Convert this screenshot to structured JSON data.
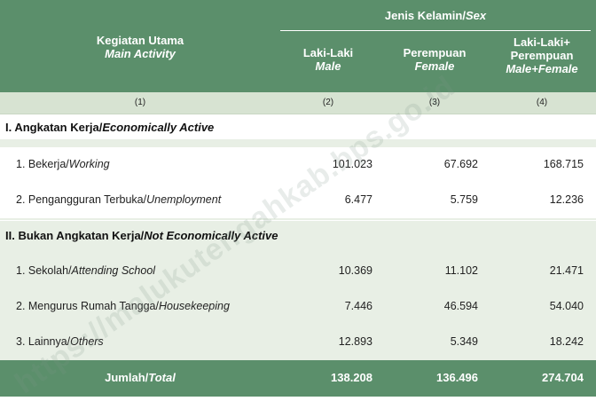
{
  "header": {
    "main_activity": "Kegiatan Utama",
    "main_activity_en": "Main Activity",
    "sex_group": "Jenis Kelamin/",
    "sex_group_en": "Sex",
    "col_male": "Laki-Laki",
    "col_male_en": "Male",
    "col_female": "Perempuan",
    "col_female_en": "Female",
    "col_both_1": "Laki-Laki+",
    "col_both_2": "Perempuan",
    "col_both_en": "Male+Female"
  },
  "col_numbers": [
    "(1)",
    "(2)",
    "(3)",
    "(4)"
  ],
  "sections": [
    {
      "label": "I. Angkatan Kerja/",
      "label_en": "Economically Active",
      "rows": [
        {
          "label": "1. Bekerja/",
          "label_en": "Working",
          "male": "101.023",
          "female": "67.692",
          "total": "168.715"
        },
        {
          "label": "2. Pengangguran Terbuka/",
          "label_en": "Unemployment",
          "male": "6.477",
          "female": "5.759",
          "total": "12.236"
        }
      ]
    },
    {
      "label": "II. Bukan Angkatan Kerja/",
      "label_en": "Not Economically Active",
      "rows": [
        {
          "label": "1. Sekolah/",
          "label_en": "Attending School",
          "male": "10.369",
          "female": "11.102",
          "total": "21.471"
        },
        {
          "label": "2. Mengurus Rumah Tangga/",
          "label_en": "Housekeeping",
          "male": "7.446",
          "female": "46.594",
          "total": "54.040"
        },
        {
          "label": "3. Lainnya/",
          "label_en": "Others",
          "male": "12.893",
          "female": "5.349",
          "total": "18.242"
        }
      ]
    }
  ],
  "total": {
    "label": "Jumlah/",
    "label_en": "Total",
    "male": "138.208",
    "female": "136.496",
    "total": "274.704"
  },
  "watermark": "https://malukutengahkab.bps.go.id",
  "colors": {
    "header_green": "#5b8f6b",
    "row_tint": "#e8efe5",
    "num_row": "#d7e3d2"
  }
}
